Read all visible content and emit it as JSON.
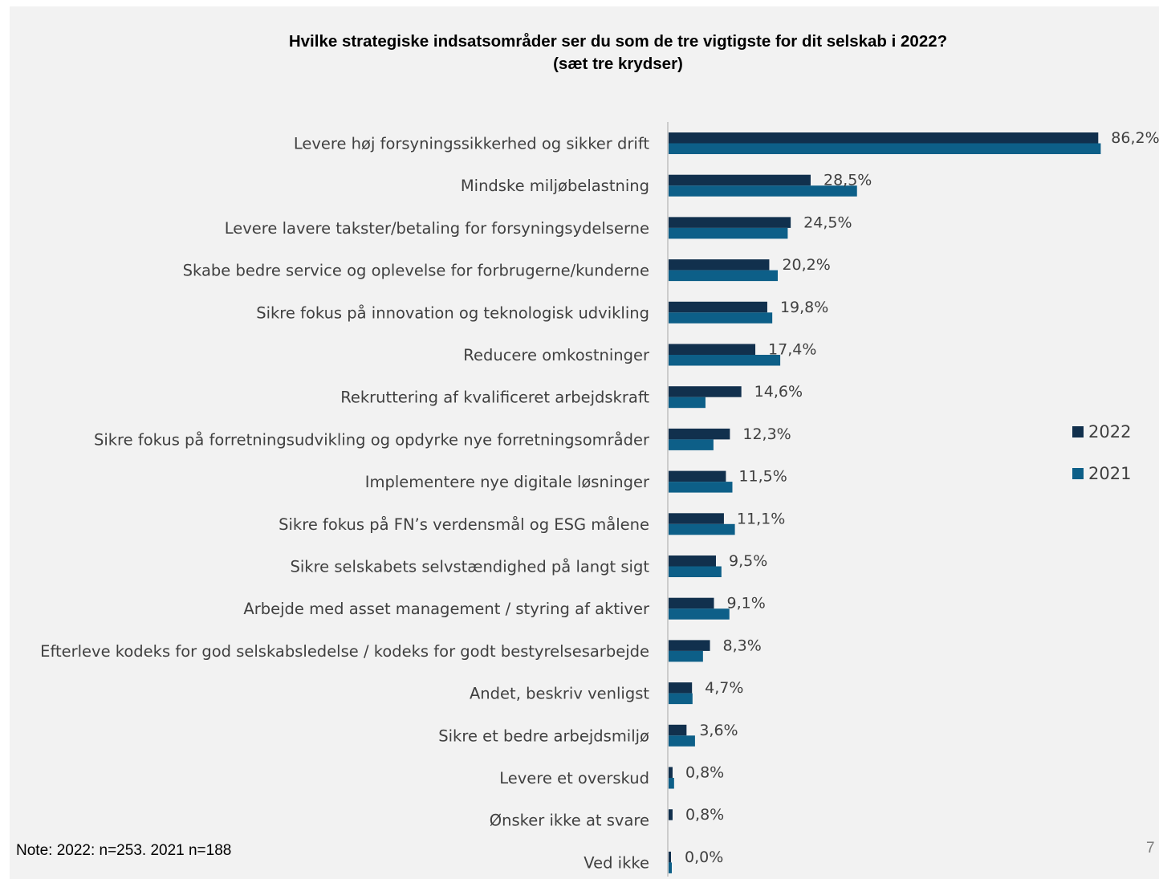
{
  "title_line1": "Hvilke strategiske indsatsområder ser du som de tre vigtigste for dit selskab i 2022?",
  "title_line2": "(sæt tre krydser)",
  "note": "Note: 2022: n=253. 2021 n=188",
  "page_number": "7",
  "colors": {
    "2022": "#11304d",
    "2021": "#0d5f88",
    "axis": "#bfbfbf",
    "background": "#f2f2f2"
  },
  "chart_data": {
    "type": "bar",
    "orientation": "horizontal",
    "categories": [
      "Levere høj forsyningssikkerhed og sikker drift",
      "Mindske miljøbelastning",
      "Levere lavere takster/betaling for forsyningsydelserne",
      "Skabe bedre service og oplevelse for forbrugerne/kunderne",
      "Sikre fokus på innovation og teknologisk udvikling",
      "Reducere omkostninger",
      "Rekruttering af kvalificeret arbejdskraft",
      "Sikre fokus på forretningsudvikling og opdyrke nye forretningsområder",
      "Implementere nye digitale løsninger",
      "Sikre fokus på FN’s verdensmål og ESG målene",
      "Sikre selskabets selvstændighed på langt sigt",
      "Arbejde med asset management / styring af aktiver",
      "Efterleve kodeks for god selskabsledelse / kodeks for godt bestyrelsesarbejde",
      "Andet, beskriv venligst",
      "Sikre et bedre arbejdsmiljø",
      "Levere et overskud",
      "Ønsker ikke at svare",
      "Ved ikke"
    ],
    "series": [
      {
        "name": "2022",
        "values": [
          86.2,
          28.5,
          24.5,
          20.2,
          19.8,
          17.4,
          14.6,
          12.3,
          11.5,
          11.1,
          9.5,
          9.1,
          8.3,
          4.7,
          3.6,
          0.8,
          0.8,
          0.0
        ]
      },
      {
        "name": "2021",
        "values": [
          86.7,
          37.8,
          23.9,
          21.9,
          20.8,
          22.4,
          7.4,
          9.0,
          12.8,
          13.3,
          10.6,
          12.2,
          6.9,
          4.8,
          5.3,
          1.1,
          null,
          0.5
        ]
      }
    ],
    "data_labels": [
      "86,2%",
      "28,5%",
      "24,5%",
      "20,2%",
      "19,8%",
      "17,4%",
      "14,6%",
      "12,3%",
      "11,5%",
      "11,1%",
      "9,5%",
      "9,1%",
      "8,3%",
      "4,7%",
      "3,6%",
      "0,8%",
      "0,8%",
      "0,0%"
    ],
    "xlim": [
      0,
      100
    ],
    "legend": [
      "2022",
      "2021"
    ],
    "legend_position": "right",
    "grid": false
  }
}
